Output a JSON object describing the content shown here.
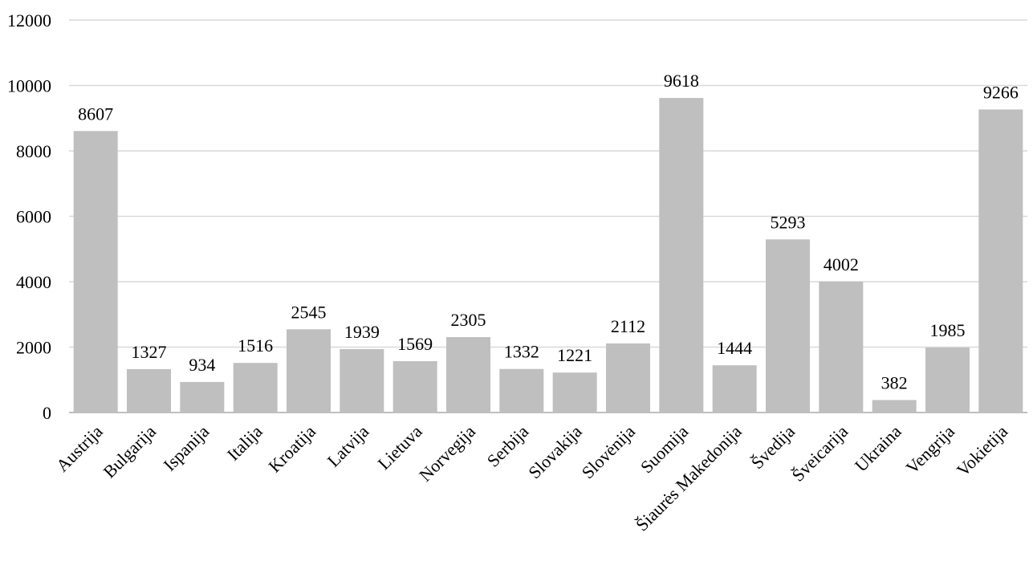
{
  "chart_data": {
    "type": "bar",
    "title": "",
    "xlabel": "",
    "ylabel": "",
    "categories": [
      "Austrija",
      "Bulgarija",
      "Ispanija",
      "Italija",
      "Kroatija",
      "Latvija",
      "Lietuva",
      "Norvegija",
      "Serbija",
      "Slovakija",
      "Slovėnija",
      "Suomija",
      "Šiaurės Makedonija",
      "Švedija",
      "Šveicarija",
      "Ukraina",
      "Vengrija",
      "Vokietija"
    ],
    "values": [
      8607,
      1327,
      934,
      1516,
      2545,
      1939,
      1569,
      2305,
      1332,
      1221,
      2112,
      9618,
      1444,
      5293,
      4002,
      382,
      1985,
      9266
    ],
    "ylim": [
      0,
      12000
    ],
    "yticks": [
      0,
      2000,
      4000,
      6000,
      8000,
      10000,
      12000
    ],
    "grid": true,
    "legend": "none",
    "bar_color": "#bfbfbf",
    "grid_color": "#d9d9d9",
    "axis_color": "#bfbfbf"
  }
}
